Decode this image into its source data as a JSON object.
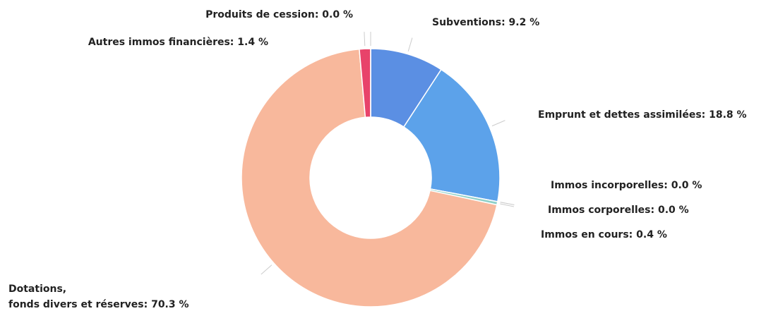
{
  "chart_data": {
    "type": "pie",
    "donut": true,
    "labels": [
      "Subventions: 9.2 %",
      "Emprunt et dettes assimilées: 18.8 %",
      "Immos incorporelles: 0.0 %",
      "Immos corporelles: 0.0 %",
      "Immos en cours: 0.4 %",
      "Dotations,\nfonds divers et réserves: 70.3 %",
      "Autres immos financières: 1.4 %",
      "Produits de cession: 0.0 %"
    ],
    "values": [
      9.2,
      18.8,
      0.0,
      0.0,
      0.4,
      70.3,
      1.4,
      0.0
    ],
    "colors": [
      "#5b8fe3",
      "#5ca2ea",
      "#9bc7a0",
      "#c9b37a",
      "#8fd0c8",
      "#f8b89c",
      "#e8436a",
      "#b9b9b9"
    ]
  }
}
